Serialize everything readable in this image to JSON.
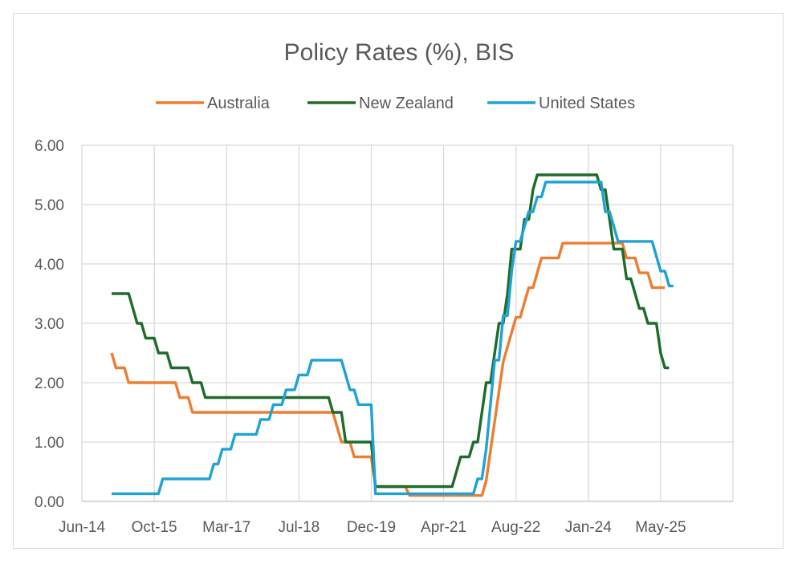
{
  "chart_data": {
    "type": "line",
    "title": "Policy Rates (%), BIS",
    "xlabel": "",
    "ylabel": "",
    "ylim": [
      0,
      6
    ],
    "yticks": [
      "0.00",
      "1.00",
      "2.00",
      "3.00",
      "4.00",
      "5.00",
      "6.00"
    ],
    "xticks": [
      "Jun-14",
      "Oct-15",
      "Mar-17",
      "Jul-18",
      "Dec-19",
      "Apr-21",
      "Aug-22",
      "Jan-24",
      "May-25"
    ],
    "grid": true,
    "legend_position": "top",
    "series": [
      {
        "name": "Australia",
        "color": "#ED7D31",
        "points": [
          [
            "2015-01",
            2.5
          ],
          [
            "2015-02",
            2.25
          ],
          [
            "2015-05",
            2.0
          ],
          [
            "2016-05",
            1.75
          ],
          [
            "2016-08",
            1.5
          ],
          [
            "2019-06",
            1.25
          ],
          [
            "2019-07",
            1.0
          ],
          [
            "2019-10",
            0.75
          ],
          [
            "2020-03",
            0.25
          ],
          [
            "2020-11",
            0.1
          ],
          [
            "2022-05",
            0.35
          ],
          [
            "2022-06",
            0.85
          ],
          [
            "2022-07",
            1.35
          ],
          [
            "2022-08",
            1.85
          ],
          [
            "2022-09",
            2.35
          ],
          [
            "2022-10",
            2.6
          ],
          [
            "2022-11",
            2.85
          ],
          [
            "2022-12",
            3.1
          ],
          [
            "2023-02",
            3.35
          ],
          [
            "2023-03",
            3.6
          ],
          [
            "2023-05",
            3.85
          ],
          [
            "2023-06",
            4.1
          ],
          [
            "2023-11",
            4.35
          ],
          [
            "2025-02",
            4.1
          ],
          [
            "2025-05",
            3.85
          ],
          [
            "2025-08",
            3.6
          ],
          [
            "2025-11",
            3.6
          ]
        ]
      },
      {
        "name": "New Zealand",
        "color": "#1E6B2A",
        "points": [
          [
            "2015-01",
            3.5
          ],
          [
            "2015-06",
            3.25
          ],
          [
            "2015-07",
            3.0
          ],
          [
            "2015-09",
            2.75
          ],
          [
            "2015-12",
            2.5
          ],
          [
            "2016-03",
            2.25
          ],
          [
            "2016-08",
            2.0
          ],
          [
            "2016-11",
            1.75
          ],
          [
            "2019-05",
            1.5
          ],
          [
            "2019-08",
            1.0
          ],
          [
            "2020-03",
            0.25
          ],
          [
            "2021-10",
            0.5
          ],
          [
            "2021-11",
            0.75
          ],
          [
            "2022-02",
            1.0
          ],
          [
            "2022-04",
            1.5
          ],
          [
            "2022-05",
            2.0
          ],
          [
            "2022-07",
            2.5
          ],
          [
            "2022-08",
            3.0
          ],
          [
            "2022-10",
            3.5
          ],
          [
            "2022-11",
            4.25
          ],
          [
            "2023-02",
            4.75
          ],
          [
            "2023-04",
            5.25
          ],
          [
            "2023-05",
            5.5
          ],
          [
            "2024-08",
            5.25
          ],
          [
            "2024-10",
            4.75
          ],
          [
            "2024-11",
            4.25
          ],
          [
            "2025-02",
            3.75
          ],
          [
            "2025-04",
            3.5
          ],
          [
            "2025-05",
            3.25
          ],
          [
            "2025-07",
            3.0
          ],
          [
            "2025-10",
            2.5
          ],
          [
            "2025-11",
            2.25
          ],
          [
            "2025-12",
            2.25
          ]
        ]
      },
      {
        "name": "United States",
        "color": "#1FA2D6",
        "points": [
          [
            "2015-01",
            0.13
          ],
          [
            "2015-12",
            0.13
          ],
          [
            "2016-01",
            0.38
          ],
          [
            "2016-12",
            0.38
          ],
          [
            "2017-01",
            0.63
          ],
          [
            "2017-03",
            0.88
          ],
          [
            "2017-06",
            1.13
          ],
          [
            "2017-12",
            1.38
          ],
          [
            "2018-03",
            1.63
          ],
          [
            "2018-06",
            1.88
          ],
          [
            "2018-09",
            2.13
          ],
          [
            "2018-12",
            2.38
          ],
          [
            "2019-08",
            2.13
          ],
          [
            "2019-09",
            1.88
          ],
          [
            "2019-11",
            1.63
          ],
          [
            "2020-03",
            0.13
          ],
          [
            "2022-03",
            0.38
          ],
          [
            "2022-05",
            0.88
          ],
          [
            "2022-06",
            1.63
          ],
          [
            "2022-07",
            2.38
          ],
          [
            "2022-09",
            3.13
          ],
          [
            "2022-11",
            3.88
          ],
          [
            "2022-12",
            4.38
          ],
          [
            "2023-02",
            4.63
          ],
          [
            "2023-03",
            4.88
          ],
          [
            "2023-05",
            5.13
          ],
          [
            "2023-07",
            5.38
          ],
          [
            "2024-09",
            4.88
          ],
          [
            "2024-11",
            4.63
          ],
          [
            "2024-12",
            4.38
          ],
          [
            "2025-09",
            4.13
          ],
          [
            "2025-10",
            3.88
          ],
          [
            "2025-12",
            3.63
          ],
          [
            "2026-01",
            3.63
          ]
        ]
      }
    ]
  }
}
